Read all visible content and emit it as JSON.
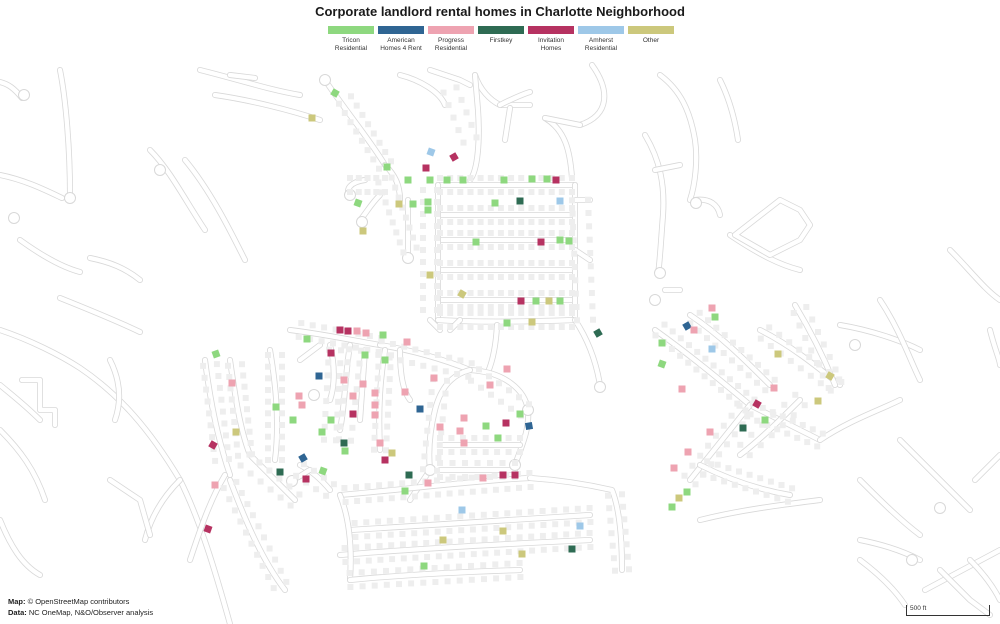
{
  "title": "Corporate landlord rental homes in Charlotte Neighborhood",
  "legend": [
    {
      "lines": [
        "Tricon",
        "Residential"
      ],
      "color": "#8ed87f"
    },
    {
      "lines": [
        "American",
        "Homes 4 Rent"
      ],
      "color": "#2f6593"
    },
    {
      "lines": [
        "Progress",
        "Residential"
      ],
      "color": "#eea3b1"
    },
    {
      "lines": [
        "Firstkey",
        ""
      ],
      "color": "#2e6b53"
    },
    {
      "lines": [
        "Invitation",
        "Homes"
      ],
      "color": "#b63261"
    },
    {
      "lines": [
        "Amherst",
        "Residential"
      ],
      "color": "#9ec8e8"
    },
    {
      "lines": [
        "Other",
        ""
      ],
      "color": "#ccc87c"
    }
  ],
  "credits": {
    "map_label": "Map:",
    "map_text": "© OpenStreetMap contributors",
    "data_label": "Data:",
    "data_text": "NC OneMap, N&O/Observer analysis"
  },
  "scale": {
    "label": "500 ft"
  }
}
